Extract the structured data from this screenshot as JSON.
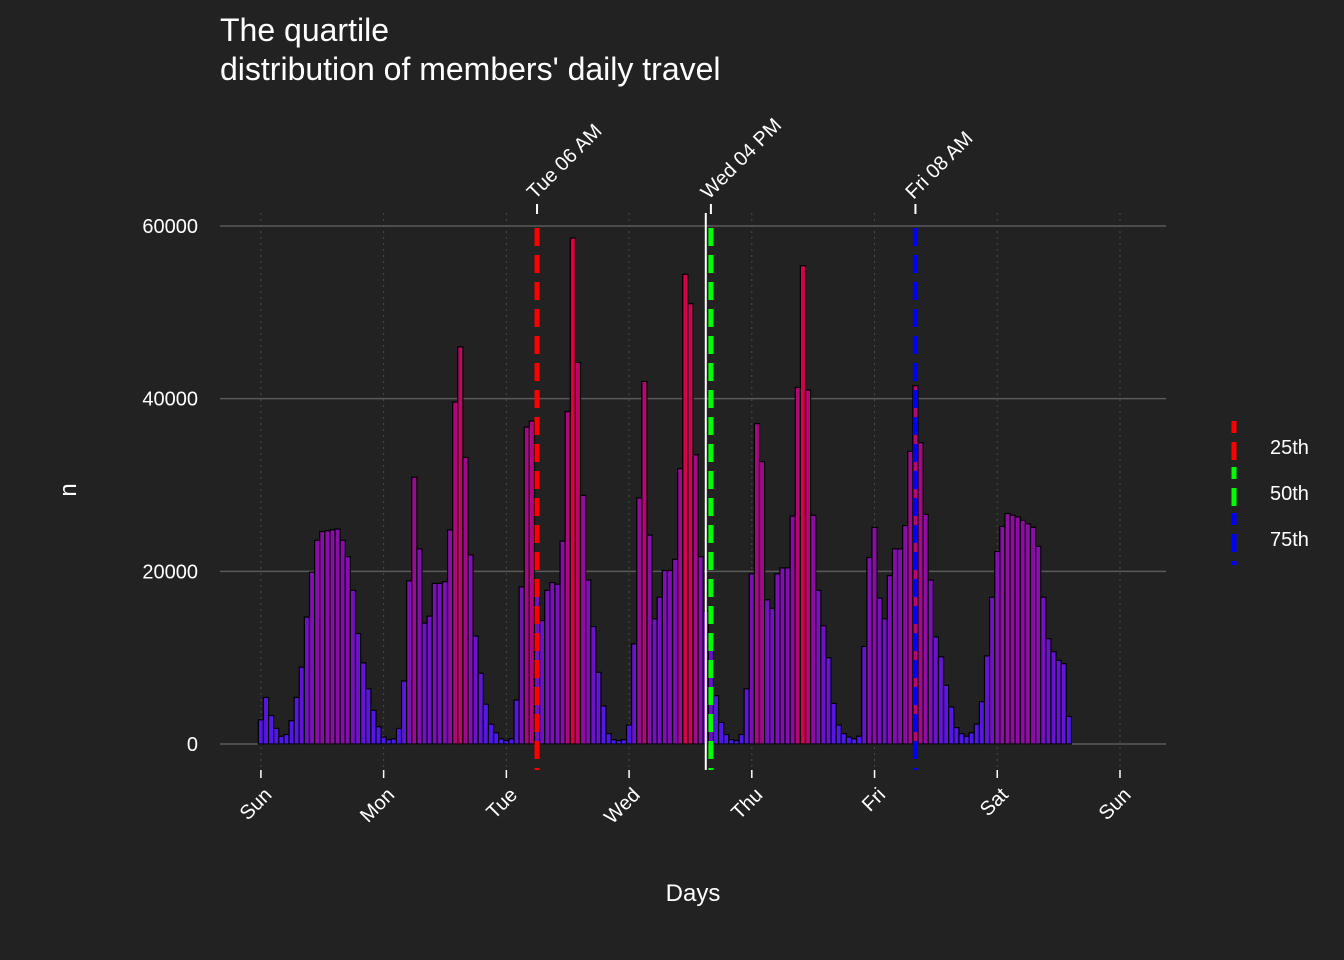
{
  "chart_data": {
    "type": "bar",
    "title_lines": [
      "The quartile",
      "distribution of members' daily travel"
    ],
    "xlabel": "Days",
    "ylabel": "n",
    "ylim": [
      0,
      62000
    ],
    "yticks": [
      0,
      20000,
      40000,
      60000
    ],
    "ytick_labels": [
      "0",
      "20000",
      "40000",
      "60000"
    ],
    "xticks": [
      0,
      24,
      48,
      72,
      96,
      120,
      144,
      168
    ],
    "xtick_labels": [
      "Sun",
      "Mon",
      "Tue",
      "Wed",
      "Thu",
      "Fri",
      "Sat",
      "Sun"
    ],
    "xlim": [
      -8,
      177
    ],
    "grid": true,
    "bar_colors": {
      "low": "#4b18f0",
      "high": "#e0003f"
    },
    "bar_outline": "#000000",
    "values": [
      2800,
      5400,
      3300,
      1800,
      900,
      1100,
      2700,
      5400,
      8900,
      14700,
      19900,
      23600,
      24600,
      24700,
      24800,
      24900,
      23600,
      21700,
      17800,
      12800,
      9400,
      6400,
      3900,
      2000,
      800,
      500,
      600,
      1800,
      7300,
      18900,
      30900,
      22600,
      14000,
      14800,
      18600,
      18600,
      18800,
      24800,
      39600,
      46000,
      33200,
      21900,
      12500,
      8200,
      4600,
      2300,
      1300,
      600,
      400,
      600,
      5100,
      18200,
      36700,
      37400,
      17300,
      14300,
      17800,
      18700,
      18500,
      23500,
      38500,
      58600,
      44200,
      28800,
      19000,
      13600,
      8300,
      4400,
      1200,
      500,
      400,
      500,
      2200,
      11600,
      28500,
      42000,
      24200,
      14500,
      17000,
      20100,
      20100,
      21400,
      31900,
      54400,
      51000,
      33500,
      21700,
      15400,
      11600,
      5600,
      2500,
      1100,
      500,
      400,
      1100,
      6400,
      19700,
      37100,
      32700,
      16700,
      15700,
      19700,
      20400,
      20400,
      26400,
      41300,
      55400,
      41000,
      26500,
      17800,
      13700,
      10000,
      4700,
      2200,
      1200,
      800,
      600,
      900,
      11300,
      21600,
      25100,
      16900,
      14500,
      19500,
      22600,
      22600,
      25300,
      33900,
      41500,
      34900,
      26600,
      19000,
      12400,
      10100,
      6800,
      4300,
      1900,
      1200,
      900,
      1300,
      2300,
      4900,
      10200,
      17000,
      22300,
      25200,
      26700,
      26500,
      26300,
      25900,
      25500,
      25100,
      22900,
      17000,
      12200,
      10700,
      9700,
      9300,
      3200
    ],
    "quantiles": [
      {
        "name": "25th",
        "label": "Tue 06 AM",
        "x": 54,
        "color": "#ff0000"
      },
      {
        "name": "50th",
        "label": "Wed 04 PM",
        "x": 88,
        "color": "#00ff00"
      },
      {
        "name": "75th",
        "label": "Fri 08 AM",
        "x": 128,
        "color": "#0000ff"
      }
    ],
    "mean_line": {
      "x": 87,
      "color": "#ffffff"
    }
  }
}
